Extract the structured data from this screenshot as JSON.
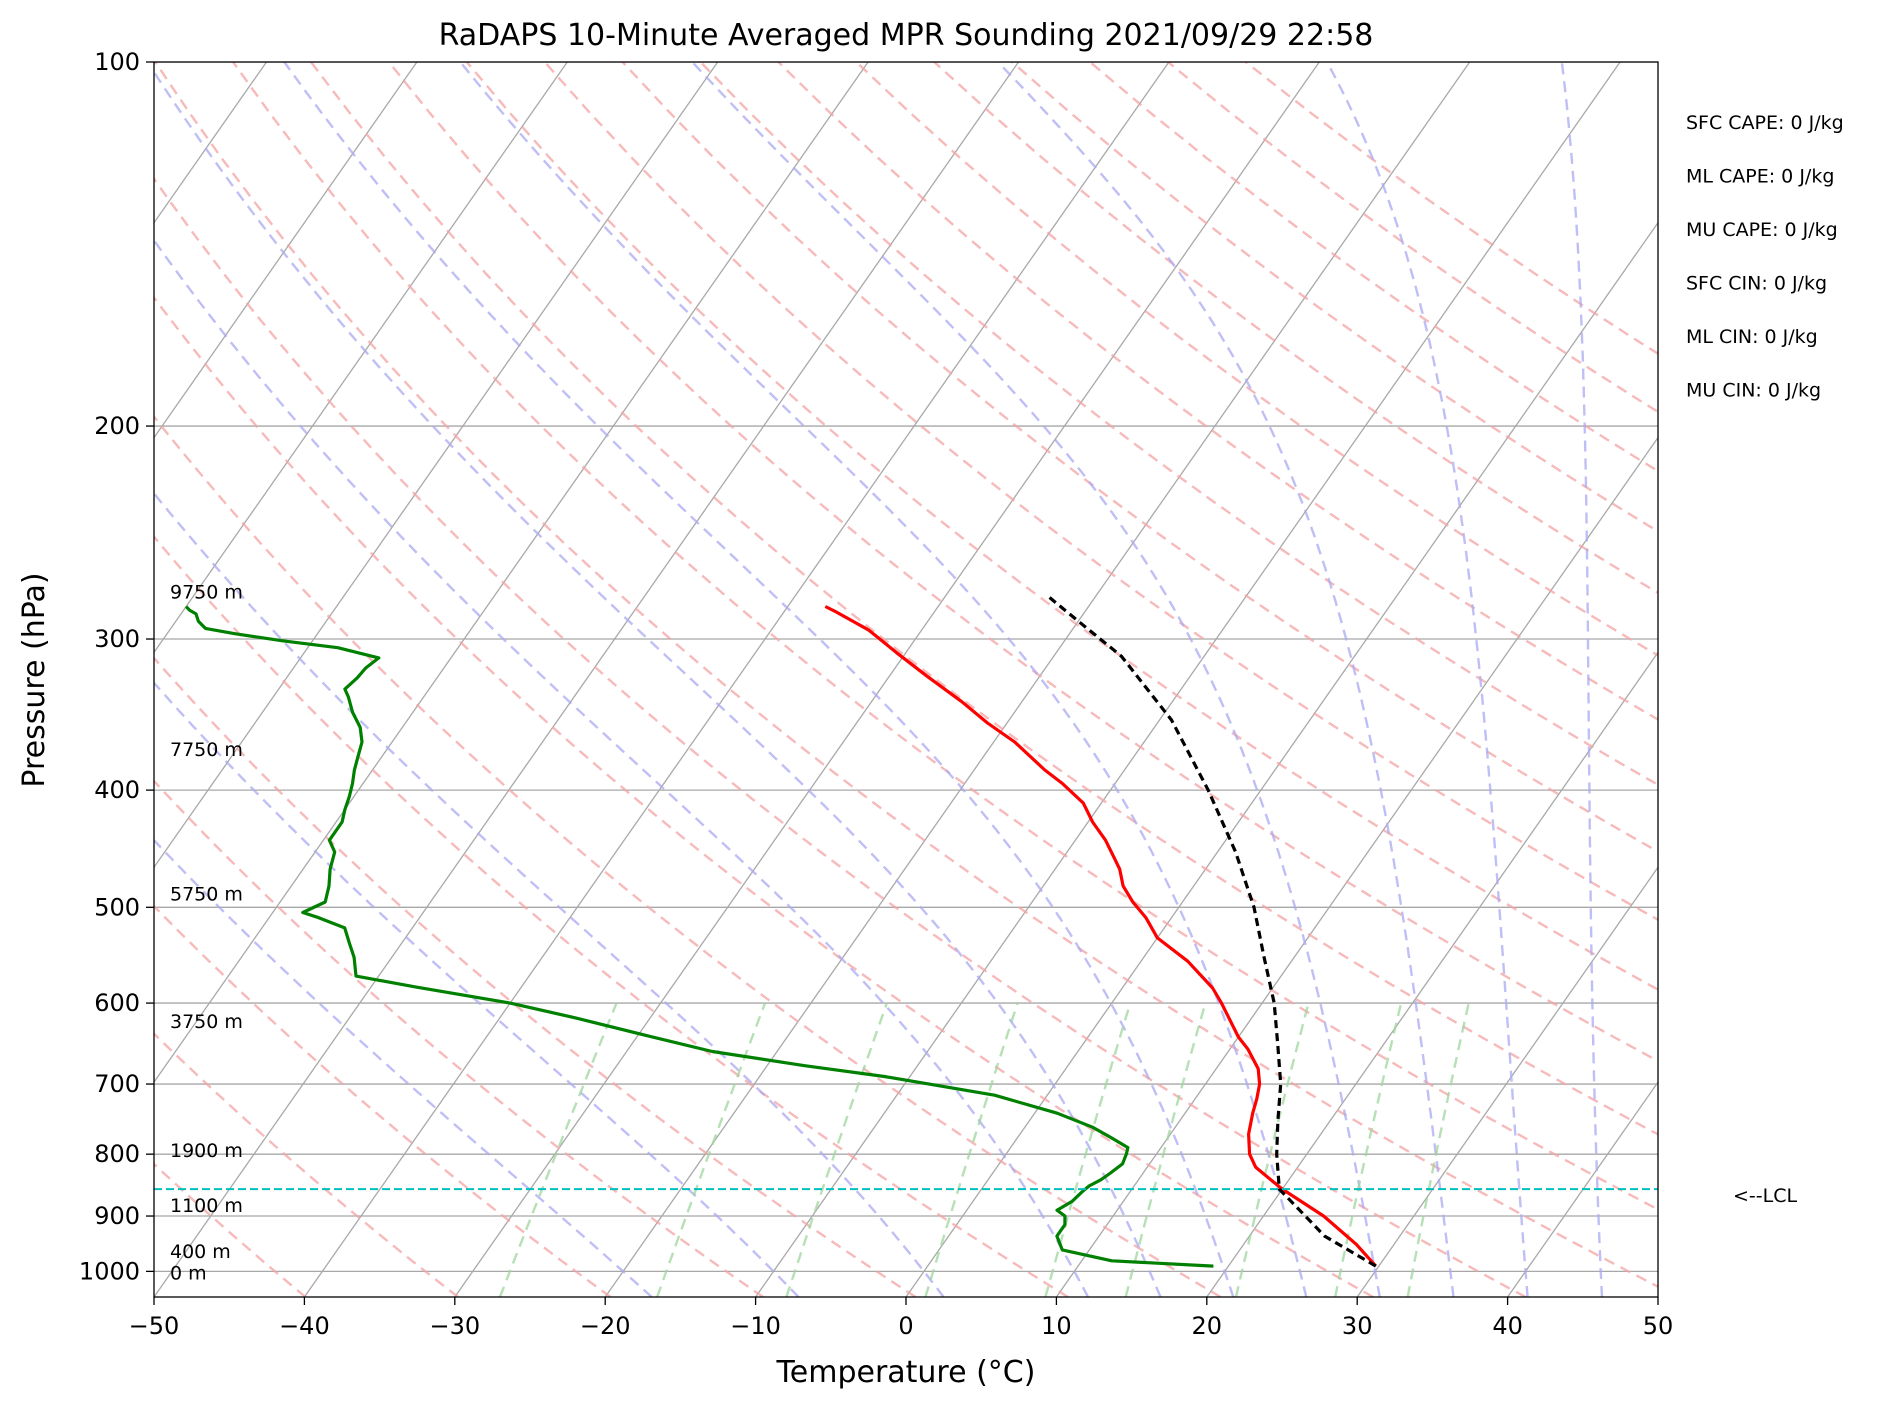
{
  "chart_data": {
    "type": "line",
    "title": "RaDAPS 10-Minute Averaged MPR Sounding 2021/09/29 22:58",
    "xlabel": "Temperature (°C)",
    "ylabel": "Pressure (hPa)",
    "xlim": [
      -50,
      50
    ],
    "ylim": [
      1050,
      100
    ],
    "y_scale": "log",
    "skew": true,
    "grid": true,
    "x_ticks": [
      -50,
      -40,
      -30,
      -20,
      -10,
      0,
      10,
      20,
      30,
      40,
      50
    ],
    "x_tick_labels": [
      "−50",
      "−40",
      "−30",
      "−20",
      "−10",
      "0",
      "10",
      "20",
      "30",
      "40",
      "50"
    ],
    "y_ticks": [
      100,
      200,
      300,
      400,
      500,
      600,
      700,
      800,
      900,
      1000
    ],
    "y_tick_labels": [
      "100",
      "200",
      "300",
      "400",
      "500",
      "600",
      "700",
      "800",
      "900",
      "1000"
    ],
    "reference_lines": {
      "isotherms": {
        "color": "#a8a8a8",
        "values": [
          -130,
          -120,
          -110,
          -100,
          -90,
          -80,
          -70,
          -60,
          -50,
          -40,
          -30,
          -20,
          -10,
          0,
          10,
          20,
          30,
          40,
          50
        ]
      },
      "dry_adiabats": {
        "color": "#f4a3a3",
        "theta_K": [
          230,
          240,
          250,
          260,
          270,
          280,
          290,
          300,
          310,
          320,
          330,
          340,
          350,
          360,
          370,
          380,
          390,
          400,
          410,
          420,
          430,
          440,
          450,
          460
        ]
      },
      "moist_adiabats": {
        "color": "#a9a9f2",
        "start_temps_c": [
          -20,
          -10,
          0,
          10,
          15,
          20,
          25,
          30,
          35,
          40,
          45
        ]
      },
      "mixing_ratio": {
        "color": "#9ed69e",
        "values_g_kg": [
          0.4,
          1,
          2,
          4,
          7,
          10,
          16,
          24,
          32
        ],
        "top_hpa": 600
      }
    },
    "series": [
      {
        "role": "temperature",
        "color": "#ff0000",
        "points": [
          [
            29.8,
            990
          ],
          [
            27.5,
            950
          ],
          [
            24,
            900
          ],
          [
            20,
            855
          ],
          [
            18.8,
            840
          ],
          [
            17.2,
            820
          ],
          [
            16.2,
            800
          ],
          [
            15.2,
            770
          ],
          [
            14.5,
            740
          ],
          [
            14.1,
            720
          ],
          [
            13.6,
            700
          ],
          [
            12.8,
            680
          ],
          [
            11.2,
            655
          ],
          [
            10.0,
            640
          ],
          [
            7.3,
            600
          ],
          [
            6.0,
            583
          ],
          [
            3.1,
            554
          ],
          [
            0,
            530
          ],
          [
            -1.7,
            510
          ],
          [
            -3.3,
            495
          ],
          [
            -4.7,
            480
          ],
          [
            -5.7,
            465
          ],
          [
            -6.6,
            455
          ],
          [
            -8.0,
            440
          ],
          [
            -9.7,
            425
          ],
          [
            -11.2,
            410
          ],
          [
            -13.5,
            395
          ],
          [
            -15.3,
            385
          ],
          [
            -18.6,
            365
          ],
          [
            -21.3,
            352
          ],
          [
            -24.0,
            338
          ],
          [
            -27.5,
            322
          ],
          [
            -30.6,
            308
          ],
          [
            -33.5,
            295
          ],
          [
            -36.5,
            285
          ],
          [
            -37.5,
            282
          ]
        ]
      },
      {
        "role": "dewpoint",
        "color": "#008000",
        "points": [
          [
            19,
            990
          ],
          [
            12,
            980
          ],
          [
            8.2,
            960
          ],
          [
            7.2,
            935
          ],
          [
            7.2,
            915
          ],
          [
            6.8,
            900
          ],
          [
            6.0,
            890
          ],
          [
            6.6,
            875
          ],
          [
            6.8,
            860
          ],
          [
            7.0,
            850
          ],
          [
            7.5,
            840
          ],
          [
            7.8,
            830
          ],
          [
            8.2,
            815
          ],
          [
            8.0,
            800
          ],
          [
            7.8,
            790
          ],
          [
            6.2,
            775
          ],
          [
            4.5,
            760
          ],
          [
            1.5,
            740
          ],
          [
            -3.5,
            715
          ],
          [
            -11.7,
            690
          ],
          [
            -17.5,
            676
          ],
          [
            -24.3,
            658
          ],
          [
            -29.5,
            638
          ],
          [
            -35.0,
            617
          ],
          [
            -40.0,
            600
          ],
          [
            -47.0,
            582
          ],
          [
            -51.5,
            570
          ],
          [
            -52.5,
            550
          ],
          [
            -53.5,
            535
          ],
          [
            -54.5,
            520
          ],
          [
            -56.7,
            510
          ],
          [
            -58.0,
            505
          ],
          [
            -57.0,
            495
          ],
          [
            -57.5,
            480
          ],
          [
            -58.2,
            465
          ],
          [
            -58.7,
            450
          ],
          [
            -59.6,
            440
          ],
          [
            -59.6,
            425
          ],
          [
            -60.0,
            415
          ],
          [
            -60.3,
            405
          ],
          [
            -60.7,
            395
          ],
          [
            -61.2,
            385
          ],
          [
            -61.6,
            375
          ],
          [
            -62.0,
            365
          ],
          [
            -62.8,
            355
          ],
          [
            -64.0,
            345
          ],
          [
            -65.0,
            335
          ],
          [
            -65.6,
            330
          ],
          [
            -65.3,
            323
          ],
          [
            -65.2,
            317
          ],
          [
            -64.8,
            311
          ],
          [
            -68.0,
            305
          ],
          [
            -72.0,
            301
          ],
          [
            -75.5,
            297
          ],
          [
            -77.7,
            294
          ],
          [
            -78.5,
            290
          ],
          [
            -79.0,
            286
          ],
          [
            -79.6,
            284
          ],
          [
            -80,
            282
          ]
        ]
      },
      {
        "role": "parcel",
        "color": "#000000",
        "dash": "8,5",
        "points": [
          [
            29.8,
            990
          ],
          [
            25.0,
            935
          ],
          [
            19.8,
            855
          ],
          [
            18.0,
            800
          ],
          [
            16.5,
            750
          ],
          [
            15.0,
            700
          ],
          [
            13.0,
            650
          ],
          [
            10.8,
            600
          ],
          [
            8.0,
            550
          ],
          [
            5.0,
            500
          ],
          [
            1.2,
            450
          ],
          [
            -3.5,
            400
          ],
          [
            -9.2,
            350
          ],
          [
            -15.5,
            310
          ],
          [
            -20.0,
            290
          ],
          [
            -23.3,
            276
          ]
        ]
      },
      {
        "role": "lcl",
        "color": "#00bfbf",
        "pressure": 855,
        "label": "<--LCL"
      }
    ],
    "height_labels": [
      {
        "text": "9750 m",
        "p": 274
      },
      {
        "text": "7750 m",
        "p": 370
      },
      {
        "text": "5750 m",
        "p": 487
      },
      {
        "text": "3750 m",
        "p": 621
      },
      {
        "text": "1900 m",
        "p": 794
      },
      {
        "text": "1100 m",
        "p": 881
      },
      {
        "text": "400 m",
        "p": 962
      },
      {
        "text": "0 m",
        "p": 1002
      }
    ],
    "stats": [
      "SFC CAPE: 0 J/kg",
      "ML CAPE: 0 J/kg",
      "MU CAPE: 0 J/kg",
      "SFC CIN: 0 J/kg",
      "ML CIN: 0 J/kg",
      "MU CIN: 0 J/kg"
    ]
  }
}
